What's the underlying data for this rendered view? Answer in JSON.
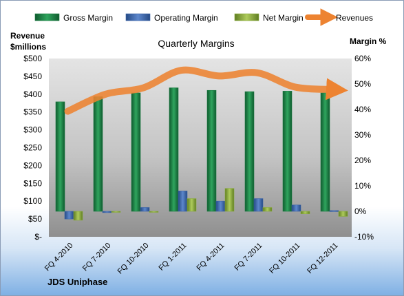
{
  "chart_data": {
    "type": "bar",
    "title": "Quarterly Margins",
    "footer_label": "JDS Uniphase",
    "left_axis": {
      "label_line1": "Revenue",
      "label_line2": "$millions",
      "ylim": [
        0,
        500
      ],
      "ticks": [
        0,
        50,
        100,
        150,
        200,
        250,
        300,
        350,
        400,
        450,
        500
      ],
      "tick_labels": [
        "$-",
        "$50",
        "$100",
        "$150",
        "$200",
        "$250",
        "$300",
        "$350",
        "$400",
        "$450",
        "$500"
      ]
    },
    "right_axis": {
      "label": "Margin %",
      "ylim": [
        -10,
        60
      ],
      "ticks": [
        -10,
        0,
        10,
        20,
        30,
        40,
        50,
        60
      ],
      "tick_labels": [
        "-10%",
        "0%",
        "10%",
        "20%",
        "30%",
        "40%",
        "50%",
        "60%"
      ]
    },
    "categories": [
      "FQ 4-2010",
      "FQ 7-2010",
      "FQ 10-2010",
      "FQ 1-2011",
      "FQ 4-2011",
      "FQ 7-2011",
      "FQ 10-2011",
      "FQ 12-2011"
    ],
    "series": [
      {
        "name": "Gross Margin",
        "axis": "right",
        "kind": "bar",
        "color": "#1e7f45",
        "values": [
          43.0,
          45.0,
          46.5,
          48.5,
          47.5,
          47.0,
          47.2,
          46.5
        ]
      },
      {
        "name": "Operating Margin",
        "axis": "right",
        "kind": "bar",
        "color": "#3c64a8",
        "values": [
          -3.0,
          -0.5,
          1.5,
          8.0,
          4.0,
          5.0,
          2.5,
          0.3
        ]
      },
      {
        "name": "Net Margin",
        "axis": "right",
        "kind": "bar",
        "color": "#8bac3e",
        "values": [
          -3.5,
          -0.2,
          -0.3,
          5.0,
          9.0,
          1.5,
          -1.0,
          -2.0
        ]
      },
      {
        "name": "Revenues",
        "axis": "left",
        "kind": "line",
        "color": "#ed8331",
        "values": [
          352,
          400,
          418,
          467,
          451,
          460,
          420,
          413
        ]
      }
    ],
    "legend_position": "top",
    "grid": false,
    "plot_background": "gradient grey"
  }
}
